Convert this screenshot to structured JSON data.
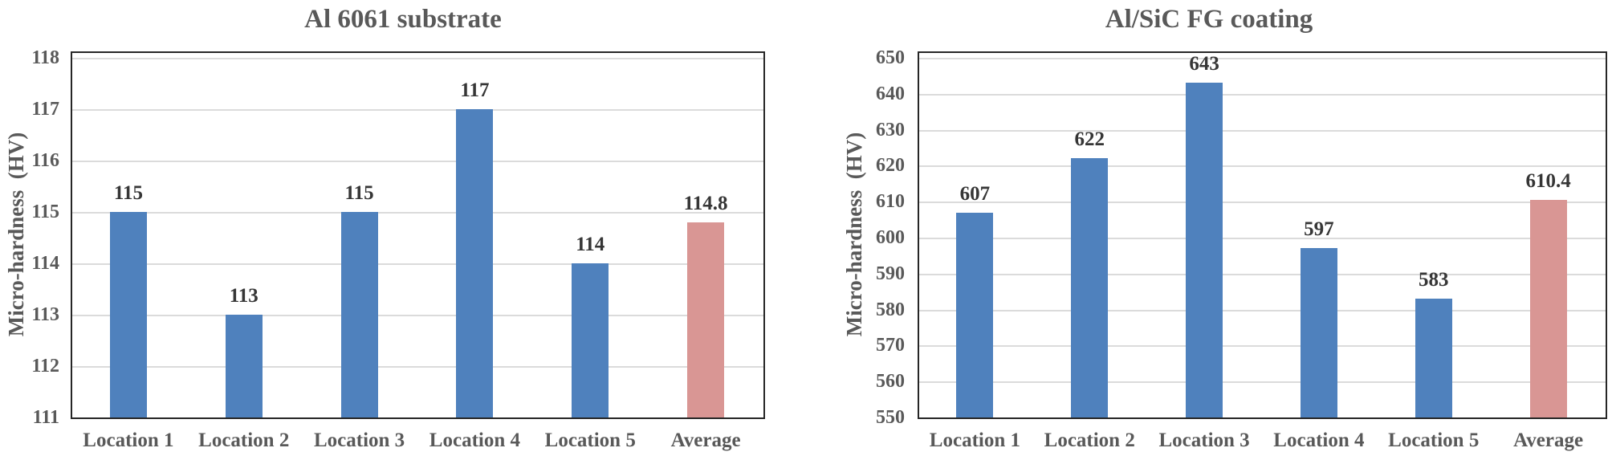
{
  "figure": {
    "background": "#ffffff"
  },
  "style": {
    "bar_blue": "#4F81BD",
    "bar_pink": "#D99694",
    "grid_color": "#DBDBDB",
    "plot_border_color": "#262626",
    "axis_text_color": "#595959",
    "data_label_color": "#363636",
    "title_color": "#595959"
  },
  "chart_data": [
    {
      "type": "bar",
      "title": "Al 6061 substrate",
      "ylabel": "Micro-hardness  (HV)",
      "xlabel": "",
      "categories": [
        "Location 1",
        "Location 2",
        "Location 3",
        "Location 4",
        "Location 5",
        "Average"
      ],
      "values": [
        115,
        113,
        115,
        117,
        114,
        114.8
      ],
      "data_labels": [
        "115",
        "113",
        "115",
        "117",
        "114",
        "114.8"
      ],
      "ylim": [
        111,
        118
      ],
      "ytick_step": 1,
      "grid": true,
      "legend": "none",
      "bar_color": "#4F81BD",
      "average_index": 5,
      "average_bar_color": "#D99694"
    },
    {
      "type": "bar",
      "title": "Al/SiC FG coating",
      "ylabel": "Micro-hardness  (HV)",
      "xlabel": "",
      "categories": [
        "Location 1",
        "Location 2",
        "Location 3",
        "Location 4",
        "Location 5",
        "Average"
      ],
      "values": [
        607,
        622,
        643,
        597,
        583,
        610.4
      ],
      "data_labels": [
        "607",
        "622",
        "643",
        "597",
        "583",
        "610.4"
      ],
      "ylim": [
        550,
        650
      ],
      "ytick_step": 10,
      "grid": true,
      "legend": "none",
      "bar_color": "#4F81BD",
      "average_index": 5,
      "average_bar_color": "#D99694"
    }
  ]
}
